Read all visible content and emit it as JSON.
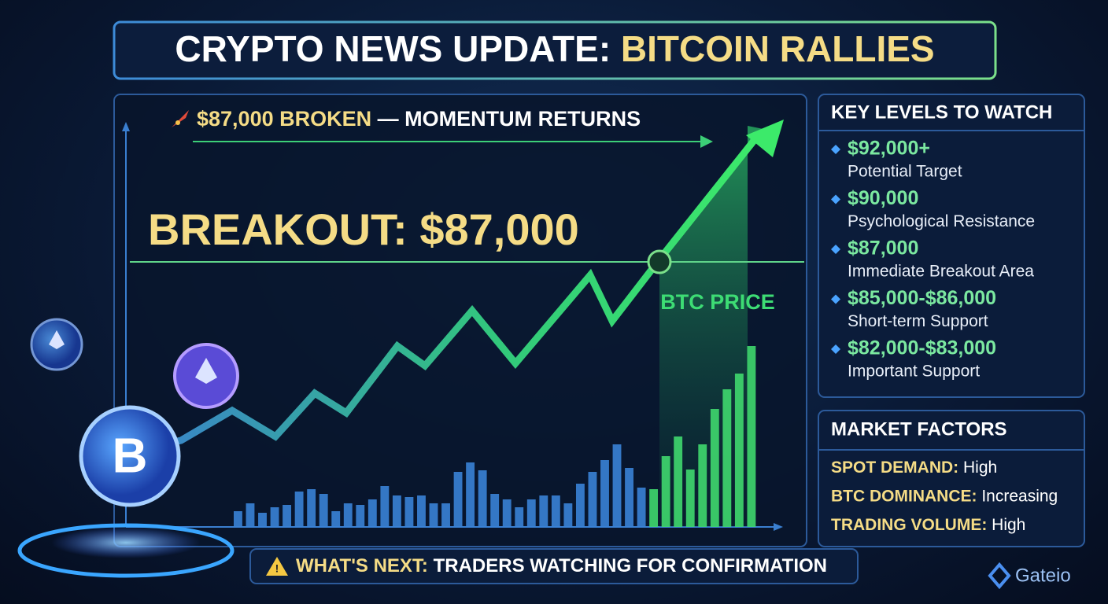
{
  "header": {
    "title_lead": "CRYPTO NEWS UPDATE:",
    "title_highlight": "BITCOIN RALLIES"
  },
  "chart": {
    "headline_highlight": "$87,000 BROKEN",
    "headline_rest": "— MOMENTUM RETURNS",
    "breakout": "BREAKOUT: $87,000",
    "price_label": "BTC PRICE"
  },
  "key_levels": {
    "title": "KEY LEVELS TO WATCH",
    "items": [
      {
        "level": "$92,000+",
        "label": "Potential Target"
      },
      {
        "level": "$90,000",
        "label": "Psychological Resistance"
      },
      {
        "level": "$87,000",
        "label": "Immediate Breakout Area"
      },
      {
        "level": "$85,000-$86,000",
        "label": "Short-term Support"
      },
      {
        "level": "$82,000-$83,000",
        "label": "Important Support"
      }
    ]
  },
  "market_factors": {
    "title": "MARKET FACTORS",
    "items": [
      {
        "name": "SPOT DEMAND:",
        "value": "High"
      },
      {
        "name": "BTC DOMINANCE:",
        "value": "Increasing"
      },
      {
        "name": "TRADING VOLUME:",
        "value": "High"
      }
    ]
  },
  "footer": {
    "lead": "WHAT'S NEXT:",
    "text": "TRADERS WATCHING FOR CONFIRMATION"
  },
  "logo": {
    "text": "Gateio"
  }
}
